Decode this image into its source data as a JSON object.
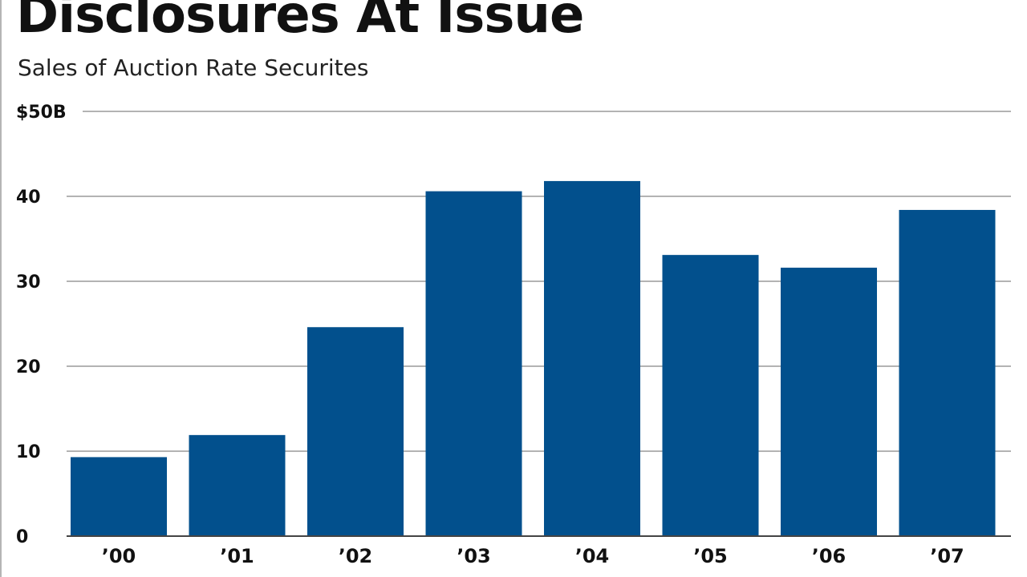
{
  "title": "Disclosures At Issue",
  "subtitle": "Sales of Auction Rate Securites",
  "colors": {
    "bar": "#02508d",
    "grid": "#b3b3b3",
    "axis": "#444444",
    "text": "#111111"
  },
  "chart_data": {
    "type": "bar",
    "title": "Disclosures At Issue",
    "subtitle": "Sales of Auction Rate Securites",
    "xlabel": "",
    "ylabel": "",
    "categories": [
      "’00",
      "’01",
      "’02",
      "’03",
      "’04",
      "’05",
      "’06",
      "’07"
    ],
    "values": [
      9.3,
      11.9,
      24.6,
      40.6,
      41.8,
      33.1,
      31.6,
      38.4
    ],
    "ylim": [
      0,
      50
    ],
    "yticks": [
      0,
      10,
      20,
      30,
      40,
      50
    ],
    "ytick_labels": [
      "0",
      "10",
      "20",
      "30",
      "40",
      "$50B"
    ],
    "grid": true,
    "legend": "none"
  }
}
